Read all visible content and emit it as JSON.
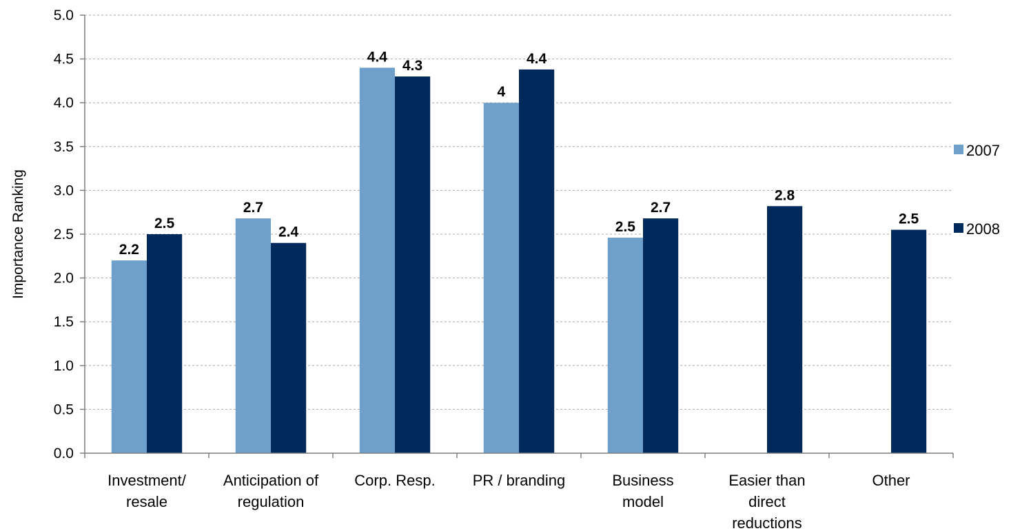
{
  "chart_data": {
    "type": "bar",
    "categories": [
      [
        "Investment/",
        "resale"
      ],
      [
        "Anticipation of",
        "regulation"
      ],
      [
        "Corp. Resp."
      ],
      [
        "PR / branding"
      ],
      [
        "Business",
        "model"
      ],
      [
        "Easier than",
        "direct",
        "reductions"
      ],
      [
        "Other"
      ]
    ],
    "series": [
      {
        "name": "2007",
        "color": "#6f9fcb",
        "values": [
          2.2,
          2.68,
          4.4,
          4.0,
          2.46,
          null,
          null
        ],
        "labels": [
          "2.2",
          "2.7",
          "4.4",
          "4",
          "2.5",
          "",
          ""
        ]
      },
      {
        "name": "2008",
        "color": "#002a5c",
        "values": [
          2.5,
          2.4,
          4.3,
          4.38,
          2.68,
          2.82,
          2.55
        ],
        "labels": [
          "2.5",
          "2.4",
          "4.3",
          "4.4",
          "2.7",
          "2.8",
          "2.5"
        ]
      }
    ],
    "ylabel": "Importance Ranking",
    "ylim": [
      0,
      5
    ],
    "yticks": [
      "0.0",
      "0.5",
      "1.0",
      "1.5",
      "2.0",
      "2.5",
      "3.0",
      "3.5",
      "4.0",
      "4.5",
      "5.0"
    ],
    "ytick_step": 0.5,
    "grid": true,
    "legend": "right"
  }
}
